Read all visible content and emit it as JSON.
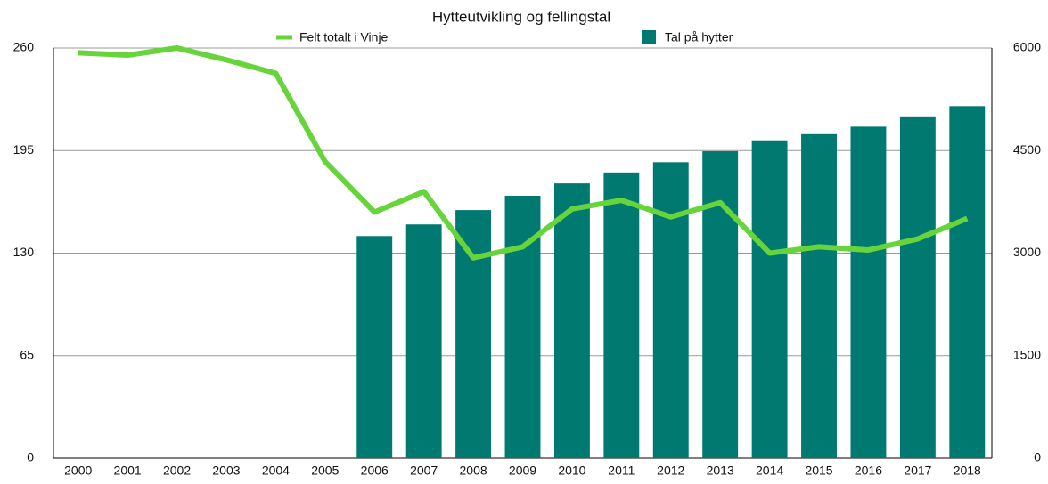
{
  "chart_data": {
    "type": "bar_line",
    "title": "Hytteutvikling og fellingstal",
    "categories": [
      "2000",
      "2001",
      "2002",
      "2003",
      "2004",
      "2005",
      "2006",
      "2007",
      "2008",
      "2009",
      "2010",
      "2011",
      "2012",
      "2013",
      "2014",
      "2015",
      "2016",
      "2017",
      "2018"
    ],
    "series": [
      {
        "name": "Felt totalt i Vinje",
        "type": "line",
        "axis": "y",
        "color": "#66d43a",
        "values": [
          257,
          255.5,
          260,
          252.5,
          244,
          188,
          156,
          169,
          127,
          134,
          158,
          163.5,
          153,
          162,
          130,
          134,
          132,
          139,
          152
        ]
      },
      {
        "name": "Tal på hytter",
        "type": "bar",
        "axis": "y2",
        "color": "#007a70",
        "values": [
          null,
          null,
          null,
          null,
          null,
          null,
          3250,
          3420,
          3630,
          3840,
          4020,
          4180,
          4330,
          4490,
          4650,
          4740,
          4850,
          5000,
          5150
        ]
      }
    ],
    "ylim": [
      0,
      260
    ],
    "yticks": [
      0,
      65,
      130,
      195,
      260
    ],
    "y2lim": [
      0,
      6000
    ],
    "y2ticks": [
      0,
      1500,
      3000,
      4500,
      6000
    ],
    "grid": true
  }
}
